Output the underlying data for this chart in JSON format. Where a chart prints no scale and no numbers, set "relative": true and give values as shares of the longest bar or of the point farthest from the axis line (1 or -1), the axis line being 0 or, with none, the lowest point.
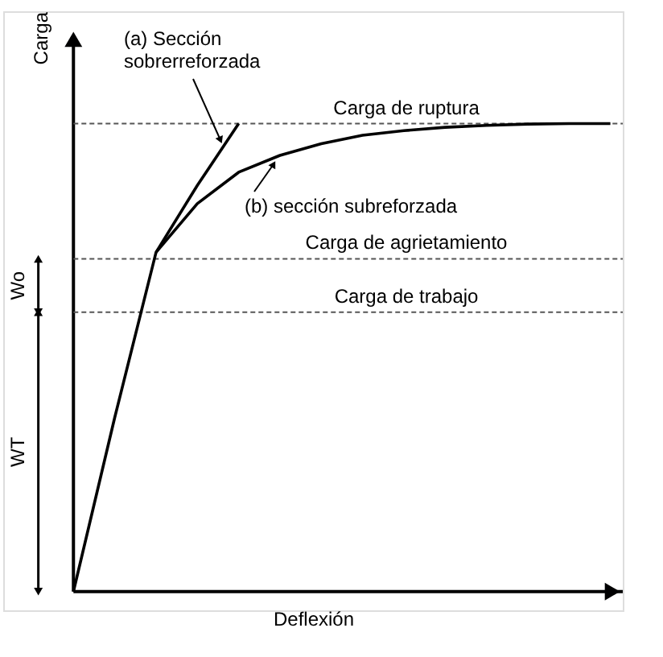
{
  "chart_data": {
    "type": "line",
    "relative": true,
    "xlabel": "Deflexión",
    "ylabel": "Carga",
    "categories": [
      null,
      null,
      null,
      null,
      null,
      null,
      null,
      null,
      null,
      null,
      null,
      null,
      null,
      null
    ],
    "tick_labels": false,
    "grid": false,
    "marker": "none",
    "line_style": "solid",
    "series": [
      {
        "color": "#000000",
        "values": [
          0,
          0.372,
          0.725,
          0.868,
          1.0,
          null,
          null,
          null,
          null,
          null,
          null,
          null,
          null,
          null
        ]
      },
      {
        "color": "#000000",
        "values": [
          null,
          null,
          0.725,
          0.829,
          0.896,
          0.932,
          0.957,
          0.975,
          0.985,
          0.992,
          0.996,
          0.999,
          1,
          1
        ]
      }
    ],
    "ref_lines": [
      {
        "axis": "y",
        "value": 1,
        "label": "Carga de ruptura",
        "color": "#555555"
      },
      {
        "axis": "y",
        "value": 0.711,
        "label": "Carga de agrietamiento",
        "color": "#555555"
      },
      {
        "axis": "y",
        "value": 0.597,
        "label": "Carga de trabajo",
        "color": "#555555"
      }
    ],
    "annotations": [
      "(a) Sección\nsobrerreforzada",
      "(b) sección subreforzada",
      "Wo",
      "WT"
    ]
  }
}
